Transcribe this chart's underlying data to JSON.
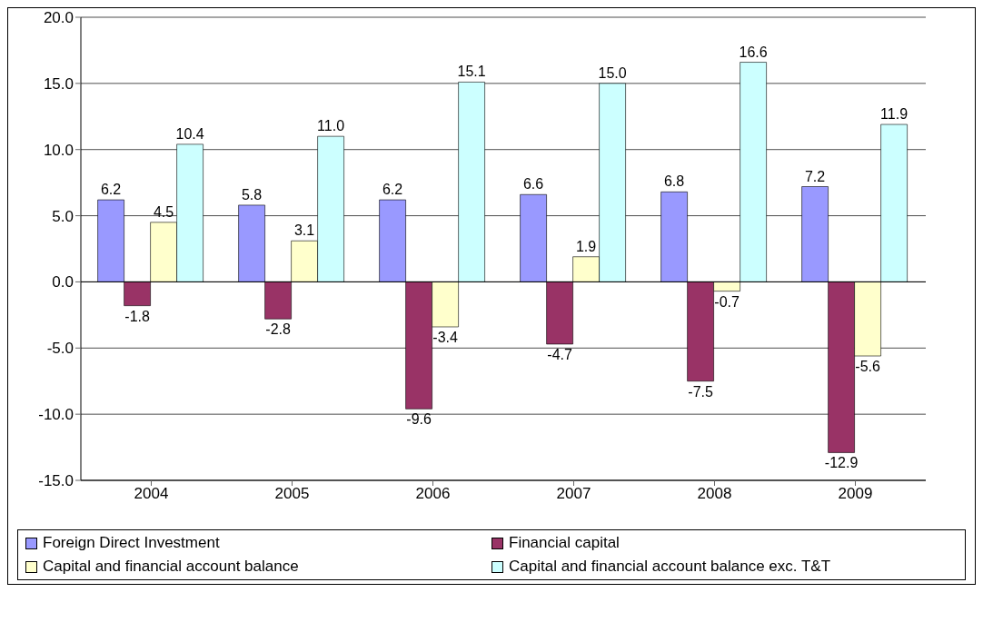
{
  "chart_data": {
    "type": "bar",
    "categories": [
      "2004",
      "2005",
      "2006",
      "2007",
      "2008",
      "2009"
    ],
    "series": [
      {
        "name": "Foreign Direct Investment",
        "color": "#9999ff",
        "values": [
          6.2,
          5.8,
          6.2,
          6.6,
          6.8,
          7.2
        ],
        "value_labels": [
          "6.2",
          "5.8",
          "6.2",
          "6.6",
          "6.8",
          "7.2"
        ]
      },
      {
        "name": "Financial capital",
        "color": "#993366",
        "values": [
          -1.8,
          -2.8,
          -9.6,
          -4.7,
          -7.5,
          -12.9
        ],
        "value_labels": [
          "-1.8",
          "-2.8",
          "-9.6",
          "-4.7",
          "-7.5",
          "-12.9"
        ]
      },
      {
        "name": "Capital and financial account balance",
        "color": "#ffffcc",
        "values": [
          4.5,
          3.1,
          -3.4,
          1.9,
          -0.7,
          -5.6
        ],
        "value_labels": [
          "4.5",
          "3.1",
          "-3.4",
          "1.9",
          "-0.7",
          "-5.6"
        ]
      },
      {
        "name": "Capital and financial account balance exc. T&T",
        "color": "#ccffff",
        "values": [
          10.4,
          11.0,
          15.1,
          15.0,
          16.6,
          11.9
        ],
        "value_labels": [
          "10.4",
          "11.0",
          "15.1",
          "15.0",
          "16.6",
          "11.9"
        ]
      }
    ],
    "ylim": [
      -15,
      20
    ],
    "yticks": [
      {
        "value": -15,
        "label": "-15.0"
      },
      {
        "value": -10,
        "label": "-10.0"
      },
      {
        "value": -5,
        "label": "-5.0"
      },
      {
        "value": 0,
        "label": "0.0"
      },
      {
        "value": 5,
        "label": "5.0"
      },
      {
        "value": 10,
        "label": "10.0"
      },
      {
        "value": 15,
        "label": "15.0"
      },
      {
        "value": 20,
        "label": "20.0"
      }
    ],
    "grid": "y",
    "legend": "bottom"
  }
}
